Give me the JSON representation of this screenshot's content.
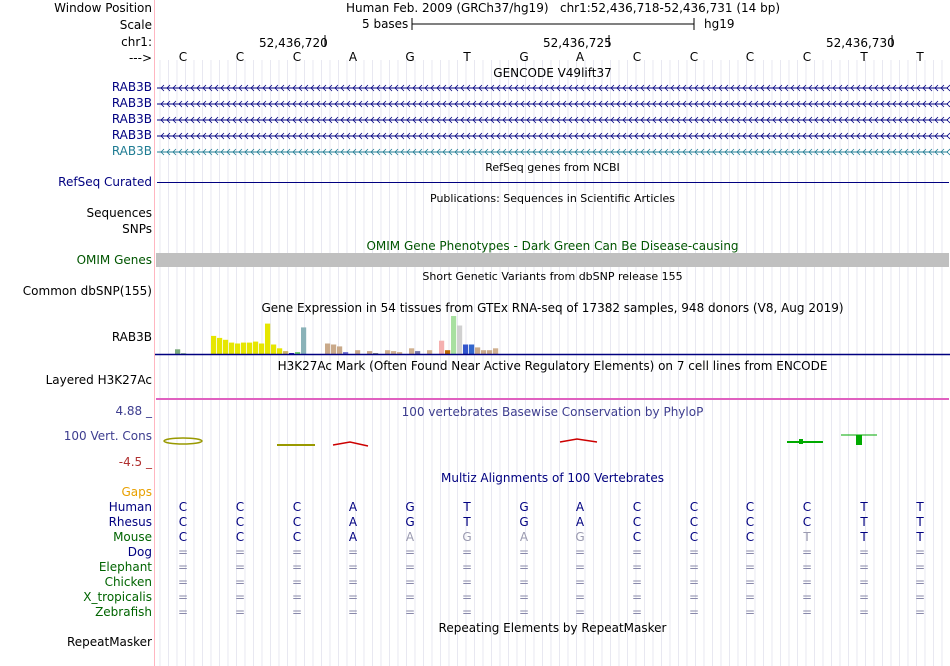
{
  "header": {
    "window_position_label": "Window Position",
    "scale_label": "Scale",
    "chrom_label": "chr1:",
    "strand_label": "--->",
    "assembly": "Human Feb. 2009 (GRCh37/hg19)",
    "position": "chr1:52,436,718-52,436,731 (14 bp)",
    "scale_text": "5 bases",
    "scale_db": "hg19",
    "coords": [
      "52,436,720",
      "52,436,725",
      "52,436,730"
    ]
  },
  "sequence": [
    "C",
    "C",
    "C",
    "A",
    "G",
    "T",
    "G",
    "A",
    "C",
    "C",
    "C",
    "C",
    "T",
    "T"
  ],
  "gencode": {
    "title": "GENCODE V49lift37",
    "rows": [
      "RAB3B",
      "RAB3B",
      "RAB3B",
      "RAB3B",
      "RAB3B"
    ]
  },
  "refseq": {
    "title": "RefSeq genes from NCBI",
    "label": "RefSeq Curated"
  },
  "publications": {
    "title": "Publications: Sequences in Scientific Articles",
    "label1": "Sequences",
    "label2": "SNPs"
  },
  "omim": {
    "title": "OMIM Gene Phenotypes - Dark Green Can Be Disease-causing",
    "label": "OMIM Genes"
  },
  "dbsnp": {
    "title": "Short Genetic Variants from dbSNP release 155",
    "label": "Common dbSNP(155)"
  },
  "gtex": {
    "title": "Gene Expression in 54 tissues from GTEx RNA-seq of 17382 samples, 948 donors (V8, Aug 2019)",
    "label": "RAB3B",
    "values": [
      0,
      0,
      0.25,
      0.05,
      0,
      0,
      0,
      0,
      0.95,
      0.85,
      0.75,
      0.6,
      0.55,
      0.6,
      0.6,
      0.65,
      0.55,
      1.6,
      0.5,
      0.3,
      0.15,
      0.05,
      0.1,
      1.4,
      0,
      0,
      0,
      0.55,
      0.5,
      0.4,
      0.1,
      0,
      0.2,
      0,
      0.15,
      0.05,
      0,
      0.2,
      0.15,
      0.1,
      0,
      0.3,
      0.15,
      0,
      0.2,
      0,
      0.7,
      0.2,
      2.0,
      1.5,
      0.5,
      0.5,
      0.35,
      0.2,
      0.2,
      0.3
    ],
    "colors": [
      "#ffffff",
      "#ffffff",
      "#7aa97a",
      "#a0c0a0",
      "#ffffff",
      "#ffffff",
      "#ffffff",
      "#ffffff",
      "#e6e600",
      "#e6e600",
      "#e6e600",
      "#e6e600",
      "#e6e600",
      "#e6e600",
      "#e6e600",
      "#e6e600",
      "#e6e600",
      "#e6e600",
      "#e6e600",
      "#e6e600",
      "#ccb56a",
      "#2b1eb3",
      "#66cc66",
      "#8ab2b8",
      "#ffffff",
      "#ffffff",
      "#ffffff",
      "#c9a98a",
      "#c9a98a",
      "#c9a98a",
      "#7070d0",
      "#ffffff",
      "#c9a98a",
      "#ffffff",
      "#c9a98a",
      "#8a8a8a",
      "#ffffff",
      "#d0b090",
      "#d0b090",
      "#d0b090",
      "#ffffff",
      "#d0b090",
      "#7777aa",
      "#ffffff",
      "#d0b090",
      "#ffffff",
      "#f5b0b0",
      "#bb6600",
      "#a8e0a0",
      "#d0d0d0",
      "#3355cc",
      "#3366cc",
      "#c9a98a",
      "#c9a98a",
      "#c9a98a",
      "#d0b090"
    ]
  },
  "h3k27ac": {
    "title": "H3K27Ac Mark (Often Found Near Active Regulatory Elements) on 7 cell lines from ENCODE",
    "label": "Layered H3K27Ac"
  },
  "phylop": {
    "title": "100 vertebrates Basewise Conservation by PhyloP",
    "label": "100 Vert. Cons",
    "max": "4.88 _",
    "min": "-4.5 _"
  },
  "multiz": {
    "title": "Multiz Alignments of 100 Vertebrates",
    "gaps_label": "Gaps",
    "species": [
      {
        "name": "Human",
        "bases": [
          "C",
          "C",
          "C",
          "A",
          "G",
          "T",
          "G",
          "A",
          "C",
          "C",
          "C",
          "C",
          "T",
          "T"
        ]
      },
      {
        "name": "Rhesus",
        "bases": [
          "C",
          "C",
          "C",
          "A",
          "G",
          "T",
          "G",
          "A",
          "C",
          "C",
          "C",
          "C",
          "T",
          "T"
        ]
      },
      {
        "name": "Mouse",
        "bases": [
          "C",
          "C",
          "C",
          "A",
          "A",
          "G",
          "A",
          "G",
          "C",
          "C",
          "C",
          "T",
          "T",
          "T"
        ]
      },
      {
        "name": "Dog",
        "bases": [
          "=",
          "=",
          "=",
          "=",
          "=",
          "=",
          "=",
          "=",
          "=",
          "=",
          "=",
          "=",
          "=",
          "="
        ]
      },
      {
        "name": "Elephant",
        "bases": [
          "=",
          "=",
          "=",
          "=",
          "=",
          "=",
          "=",
          "=",
          "=",
          "=",
          "=",
          "=",
          "=",
          "="
        ]
      },
      {
        "name": "Chicken",
        "bases": [
          "=",
          "=",
          "=",
          "=",
          "=",
          "=",
          "=",
          "=",
          "=",
          "=",
          "=",
          "=",
          "=",
          "="
        ]
      },
      {
        "name": "X_tropicalis",
        "bases": [
          "=",
          "=",
          "=",
          "=",
          "=",
          "=",
          "=",
          "=",
          "=",
          "=",
          "=",
          "=",
          "=",
          "="
        ]
      },
      {
        "name": "Zebrafish",
        "bases": [
          "=",
          "=",
          "=",
          "=",
          "=",
          "=",
          "=",
          "=",
          "=",
          "=",
          "=",
          "=",
          "=",
          "="
        ]
      }
    ]
  },
  "repeatmasker": {
    "title": "Repeating Elements by RepeatMasker",
    "label": "RepeatMasker"
  },
  "colors": {
    "navy": "#000080",
    "omim_bar": "#c0c0c0",
    "h3k27ac_bar": "#e060c0",
    "phylop_pos": "#00aa00",
    "phylop_neg": "#cc0000",
    "grid": "#d8d8e8"
  }
}
